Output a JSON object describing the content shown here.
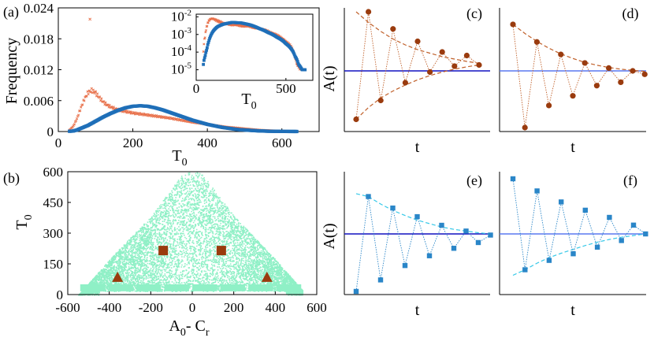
{
  "colors": {
    "scatter_orange": "#e8704a",
    "scatter_blue": "#1f6fb8",
    "mint": "#8ff0c6",
    "brown": "#9a3b0e",
    "navy_line": "#1010c0",
    "cyan_dash": "#35c8e8",
    "light_blue_line": "#5a78f0",
    "damped_blue": "#2a86c8"
  },
  "chart_data": [
    {
      "id": "a",
      "panel_label": "(a)",
      "type": "scatter",
      "title": "",
      "xlabel_main": "T",
      "xlabel_sub": "0",
      "ylabel": "Frequency",
      "xlim": [
        0,
        700
      ],
      "ylim": [
        0,
        0.024
      ],
      "xticks": [
        0,
        200,
        400,
        600
      ],
      "xtick_labels": [
        "0",
        "200",
        "400",
        "600"
      ],
      "yticks": [
        0,
        0.006,
        0.012,
        0.018,
        0.024
      ],
      "ytick_labels": [
        "0",
        "0.006",
        "0.012",
        "0.018",
        "0.024"
      ],
      "series": [
        {
          "name": "orange crosses",
          "x": [
            30,
            40,
            50,
            60,
            70,
            80,
            90,
            100,
            110,
            120,
            130,
            140,
            150,
            160,
            180,
            200,
            220,
            240,
            260,
            280,
            300,
            330,
            360,
            390,
            420,
            450,
            480,
            510,
            540,
            570,
            600,
            620
          ],
          "values": [
            0.0003,
            0.001,
            0.0025,
            0.0045,
            0.0063,
            0.0076,
            0.008,
            0.0075,
            0.0066,
            0.0058,
            0.0052,
            0.0048,
            0.0045,
            0.0042,
            0.0039,
            0.0036,
            0.0034,
            0.0032,
            0.003,
            0.0028,
            0.0026,
            0.0022,
            0.0018,
            0.0015,
            0.0012,
            0.0009,
            0.0007,
            0.0005,
            0.0003,
            0.0002,
            0.0001,
            5e-05
          ]
        },
        {
          "name": "orange outlier",
          "x": [
            85
          ],
          "values": [
            0.0218
          ]
        },
        {
          "name": "blue squares",
          "x": [
            30,
            40,
            50,
            60,
            80,
            100,
            120,
            140,
            160,
            180,
            200,
            220,
            240,
            260,
            280,
            300,
            320,
            340,
            360,
            380,
            400,
            420,
            440,
            460,
            480,
            500,
            520,
            540,
            560,
            580,
            600,
            620,
            640
          ],
          "values": [
            5e-05,
            0.0001,
            0.0003,
            0.0006,
            0.0012,
            0.002,
            0.0028,
            0.0035,
            0.0041,
            0.0046,
            0.0049,
            0.005,
            0.0049,
            0.0046,
            0.0042,
            0.0037,
            0.0032,
            0.0027,
            0.0022,
            0.0018,
            0.0014,
            0.0011,
            0.0008,
            0.0006,
            0.0004,
            0.0003,
            0.0002,
            0.00012,
            7e-05,
            4e-05,
            2e-05,
            1e-05,
            5e-06
          ]
        }
      ]
    },
    {
      "id": "a_inset",
      "type": "scatter",
      "xlabel_main": "T",
      "xlabel_sub": "0",
      "ylabel": "",
      "yscale": "log",
      "xlim": [
        0,
        650
      ],
      "ylim_exp": [
        -5.6,
        -1.85
      ],
      "xticks": [
        0,
        500
      ],
      "xtick_labels": [
        "0",
        "500"
      ],
      "yticks_exp": [
        -5,
        -4,
        -3,
        -2
      ],
      "ytick_base": "10",
      "ytick_exps": [
        "-5",
        "-4",
        "-3",
        "-2"
      ],
      "series": [
        {
          "name": "orange crosses",
          "x": [
            40,
            50,
            60,
            70,
            80,
            90,
            100,
            120,
            150,
            200,
            250,
            300,
            350,
            400,
            450,
            500,
            530,
            550,
            560,
            580
          ],
          "values": [
            0.0001,
            0.0008,
            0.003,
            0.006,
            0.0075,
            0.008,
            0.0073,
            0.0058,
            0.0045,
            0.0036,
            0.0032,
            0.0028,
            0.0022,
            0.0015,
            0.0009,
            0.0004,
            0.0002,
            5e-05,
            2e-05,
            1e-05
          ]
        },
        {
          "name": "blue squares",
          "x": [
            40,
            50,
            60,
            70,
            80,
            100,
            120,
            150,
            200,
            250,
            300,
            350,
            400,
            450,
            500,
            530,
            550,
            570,
            590,
            610
          ],
          "values": [
            2e-05,
            6e-05,
            0.00015,
            0.0004,
            0.0008,
            0.0018,
            0.0028,
            0.0038,
            0.0048,
            0.0045,
            0.0035,
            0.0022,
            0.0013,
            0.0007,
            0.0003,
            0.00015,
            6e-05,
            2e-05,
            1e-05,
            1e-05
          ]
        }
      ]
    },
    {
      "id": "b",
      "panel_label": "(b)",
      "type": "scatter",
      "xlabel_main": "A",
      "xlabel_sub1": "0",
      "xlabel_mid": "- C",
      "xlabel_sub2": "r",
      "ylabel_main": "T",
      "ylabel_sub": "0",
      "xlim": [
        -600,
        600
      ],
      "ylim": [
        0,
        600
      ],
      "xticks": [
        -600,
        -400,
        -200,
        0,
        200,
        400,
        600
      ],
      "xtick_labels": [
        "-600",
        "-400",
        "-200",
        "0",
        "200",
        "400",
        "600"
      ],
      "yticks": [
        0,
        150,
        300,
        450,
        600
      ],
      "ytick_labels": [
        "0",
        "150",
        "300",
        "450",
        "600"
      ],
      "markers": [
        {
          "shape": "square",
          "x": [
            -140,
            140
          ],
          "values": [
            215,
            215
          ]
        },
        {
          "shape": "triangle",
          "x": [
            -360,
            360
          ],
          "values": [
            85,
            85
          ]
        }
      ]
    },
    {
      "id": "c",
      "panel_label": "(c)",
      "type": "line",
      "ylabel_main": "A(t)",
      "xlabel_main": "t",
      "marker": "circle",
      "values": [
        -0.82,
        1.0,
        -0.5,
        0.71,
        -0.2,
        0.5,
        -0.02,
        0.32,
        0.08,
        0.26,
        0.1
      ],
      "envelope_upper": [
        1.0,
        0.82,
        0.67,
        0.54,
        0.44,
        0.36,
        0.3,
        0.24,
        0.2,
        0.16,
        0.13
      ],
      "envelope_lower": [
        -0.82,
        -0.62,
        -0.46,
        -0.34,
        -0.24,
        -0.15,
        -0.08,
        -0.02,
        0.03,
        0.07,
        0.1
      ],
      "baseline": 0.0
    },
    {
      "id": "d",
      "panel_label": "(d)",
      "type": "line",
      "xlabel_main": "t",
      "marker": "circle",
      "values": [
        0.82,
        -1.0,
        0.51,
        -0.61,
        0.29,
        -0.44,
        0.14,
        -0.26,
        0.05,
        -0.2,
        0.0,
        -0.06
      ],
      "envelope_upper": [
        0.82,
        0.66,
        0.52,
        0.4,
        0.3,
        0.22,
        0.15,
        0.1,
        0.06,
        0.03,
        0.01,
        -0.01
      ],
      "baseline": 0.0
    },
    {
      "id": "e",
      "panel_label": "(e)",
      "type": "line",
      "ylabel_main": "A(t)",
      "xlabel_main": "t",
      "marker": "square",
      "values": [
        -1.0,
        0.65,
        -0.8,
        0.45,
        -0.55,
        0.3,
        -0.38,
        0.15,
        -0.25,
        0.05,
        -0.15,
        -0.02
      ],
      "envelope_upper": [
        0.7,
        0.65,
        0.52,
        0.41,
        0.32,
        0.24,
        0.18,
        0.12,
        0.08,
        0.05,
        0.02,
        0.0
      ],
      "baseline": 0.0
    },
    {
      "id": "f",
      "panel_label": "(f)",
      "type": "line",
      "xlabel_main": "t",
      "marker": "square",
      "values": [
        1.0,
        -0.65,
        0.78,
        -0.48,
        0.58,
        -0.36,
        0.43,
        -0.24,
        0.3,
        -0.12,
        0.16,
        0.0
      ],
      "envelope_lower": [
        -0.75,
        -0.65,
        -0.53,
        -0.43,
        -0.35,
        -0.28,
        -0.21,
        -0.15,
        -0.1,
        -0.06,
        -0.03,
        0.0
      ],
      "baseline": 0.0
    }
  ]
}
